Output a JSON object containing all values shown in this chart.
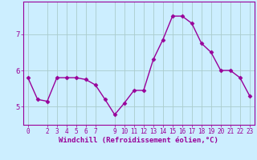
{
  "x": [
    0,
    1,
    2,
    3,
    4,
    5,
    6,
    7,
    8,
    9,
    10,
    11,
    12,
    13,
    14,
    15,
    16,
    17,
    18,
    19,
    20,
    21,
    22,
    23
  ],
  "y": [
    5.8,
    5.2,
    5.15,
    5.8,
    5.8,
    5.8,
    5.75,
    5.6,
    5.2,
    4.78,
    5.1,
    5.45,
    5.45,
    6.3,
    6.85,
    7.5,
    7.5,
    7.3,
    6.75,
    6.5,
    6.0,
    6.0,
    5.8,
    5.3
  ],
  "line_color": "#990099",
  "marker": "D",
  "marker_size": 2.5,
  "line_width": 1.0,
  "background_color": "#cceeff",
  "grid_color": "#aacccc",
  "xlabel": "Windchill (Refroidissement éolien,°C)",
  "xlabel_color": "#990099",
  "xlabel_fontsize": 6.5,
  "tick_color": "#990099",
  "tick_fontsize": 5.5,
  "ylim": [
    4.5,
    7.9
  ],
  "yticks": [
    5,
    6,
    7
  ],
  "xlim": [
    -0.5,
    23.5
  ],
  "xticks": [
    0,
    2,
    3,
    4,
    5,
    6,
    7,
    9,
    10,
    11,
    12,
    13,
    14,
    15,
    16,
    17,
    18,
    19,
    20,
    21,
    22,
    23
  ]
}
